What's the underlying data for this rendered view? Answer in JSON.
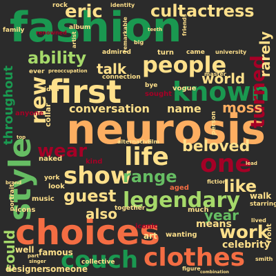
{
  "palette": {
    "background": "#2b2b2b",
    "green_dark": "#1a9850",
    "green_mid": "#66bd63",
    "green_light": "#a6d96a",
    "cream": "#fee08b",
    "orange": "#fdae61",
    "orange_dark": "#f46d43",
    "red": "#d73027",
    "crimson": "#a50026"
  },
  "words": {
    "fashion": "fashion",
    "neurosis": "neurosis",
    "choices": "choices",
    "first": "first",
    "style": "style",
    "known": "known",
    "people": "people",
    "life": "life",
    "show": "show",
    "legendary": "legendary",
    "couch": "couch",
    "clothes": "clothes",
    "eric": "eric",
    "cult": "cult",
    "actress": "actress",
    "ability": "ability",
    "new": "new",
    "talk": "talk",
    "world": "world",
    "turned": "turned",
    "conversation": "conversation",
    "moss": "moss",
    "wear": "wear",
    "one": "one",
    "beloved": "beloved",
    "range": "range",
    "guest": "guest",
    "like": "like",
    "work": "work",
    "year": "year",
    "also": "also",
    "could": "could",
    "throughout": "throughout",
    "celebrity": "celebrity",
    "means": "means",
    "name": "name",
    "rarely": "rarely",
    "famous": "famous",
    "collective": "collective",
    "someone": "someone",
    "designer": "designer",
    "vogue": "vogue",
    "art": "art",
    "walk": "walk",
    "starring": "starring",
    "aged": "aged",
    "together": "together",
    "iconic": "iconic",
    "wanting": "wanting",
    "much": "much",
    "music": "music",
    "icons": "icons",
    "portrait": "portrait",
    "anyone": "anyone",
    "collar": "collar",
    "idea": "idea",
    "naked": "naked",
    "york": "york",
    "look": "look",
    "kind": "kind",
    "alternative": "alternative",
    "film": "film",
    "fiction": "fiction",
    "person": "person",
    "master": "master",
    "came": "came",
    "university": "university",
    "turn": "turn",
    "admired": "admired",
    "sought": "sought",
    "bye": "bye",
    "connection": "connection",
    "preoccupation": "preoccupation",
    "ever": "ever",
    "family": "family",
    "album": "album",
    "artist": "artist",
    "renowned": "renowned",
    "remarkable": "remarkable",
    "big": "big",
    "friends": "friends",
    "identity": "identity",
    "rock": "rock",
    "teeth": "teeth",
    "figure": "figure",
    "smith": "smith",
    "front": "front",
    "lived": "lived",
    "well": "well",
    "lead": "lead",
    "part": "part",
    "singer": "singer",
    "combination": "combination",
    "top": "top",
    "brand": "brand"
  }
}
